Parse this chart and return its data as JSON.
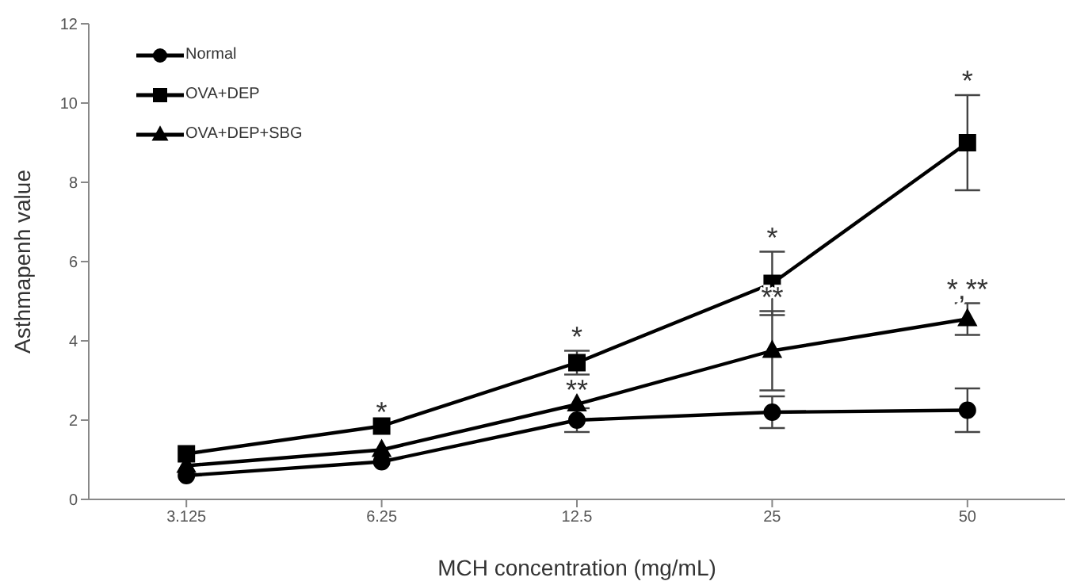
{
  "chart_data": {
    "type": "line",
    "xlabel": "MCH concentration (mg/mL)",
    "ylabel": "Asthmapenh value",
    "categories": [
      "3.125",
      "6.25",
      "12.5",
      "25",
      "50"
    ],
    "series": [
      {
        "name": "Normal",
        "color": "#000000",
        "marker": "circle",
        "values": [
          0.6,
          0.95,
          2.0,
          2.2,
          2.25
        ],
        "errors": [
          null,
          null,
          0.3,
          0.4,
          0.55
        ]
      },
      {
        "name": "OVA+DEP",
        "color": "#000000",
        "marker": "square",
        "values": [
          1.15,
          1.85,
          3.45,
          5.45,
          9.0
        ],
        "errors": [
          null,
          null,
          0.3,
          0.8,
          1.2
        ]
      },
      {
        "name": "OVA+DEP+SBG",
        "color": "#000000",
        "marker": "triangle",
        "values": [
          0.85,
          1.25,
          2.4,
          3.75,
          4.55
        ],
        "errors": [
          null,
          null,
          null,
          1.0,
          0.4
        ]
      }
    ],
    "ylim": [
      0,
      12
    ],
    "yticks": [
      0,
      2,
      4,
      6,
      8,
      10,
      12
    ],
    "grid": false,
    "legend": "top left",
    "line_style": "solid",
    "annotations": [
      {
        "text": "*",
        "x": "6.25",
        "y": 1.85
      },
      {
        "text": "*",
        "x": "12.5",
        "y": 3.45
      },
      {
        "text": "**",
        "x": "12.5",
        "y": 2.4
      },
      {
        "text": "*",
        "x": "25",
        "y": 5.45
      },
      {
        "text": "**",
        "x": "25",
        "y": 3.75
      },
      {
        "text": "*",
        "x": "50",
        "y": 9.0
      },
      {
        "text": "*,**",
        "x": "50",
        "y": 4.55
      }
    ]
  }
}
